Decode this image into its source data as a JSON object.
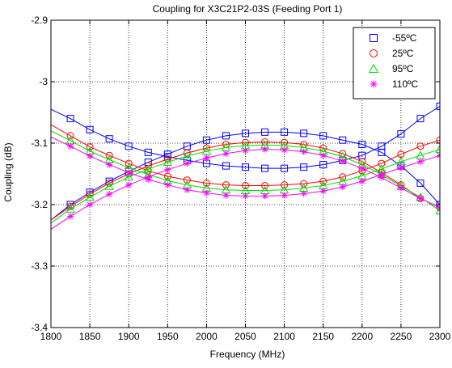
{
  "chart_data": {
    "type": "line",
    "title": "Coupling for X3C21P2-03S (Feeding Port 1)",
    "xlabel": "Frequency (MHz)",
    "ylabel": "Coupling (dB)",
    "xlim": [
      1800,
      2300
    ],
    "ylim": [
      -3.4,
      -2.9
    ],
    "xticks": [
      1800,
      1850,
      1900,
      1950,
      2000,
      2050,
      2100,
      2150,
      2200,
      2250,
      2300
    ],
    "yticks": [
      -3.4,
      -3.3,
      -3.2,
      -3.1,
      -3,
      -2.9
    ],
    "xtick_labels": [
      "1800",
      "1850",
      "1900",
      "1950",
      "2000",
      "2050",
      "2100",
      "2150",
      "2200",
      "2250",
      "2300"
    ],
    "ytick_labels": [
      "-3.4",
      "-3.3",
      "-3.2",
      "-3.1",
      "-3",
      "-2.9"
    ],
    "grid": true,
    "legend_position": "top-right",
    "x": [
      1800,
      1825,
      1850,
      1875,
      1900,
      1925,
      1950,
      1975,
      2000,
      2025,
      2050,
      2075,
      2100,
      2125,
      2150,
      2175,
      2200,
      2225,
      2250,
      2275,
      2300
    ],
    "marker_x": [
      1825,
      1850,
      1875,
      1900,
      1925,
      1950,
      1975,
      2000,
      2025,
      2050,
      2075,
      2100,
      2125,
      2150,
      2175,
      2200,
      2225,
      2250,
      2275,
      2300
    ],
    "series": [
      {
        "name": "-55ºC",
        "color": "#0000ff",
        "marker": "square",
        "curves": [
          [
            -3.045,
            -3.06,
            -3.078,
            -3.093,
            -3.105,
            -3.115,
            -3.122,
            -3.128,
            -3.133,
            -3.137,
            -3.139,
            -3.141,
            -3.141,
            -3.139,
            -3.135,
            -3.128,
            -3.12,
            -3.105,
            -3.085,
            -3.06,
            -3.04
          ],
          [
            -3.225,
            -3.2,
            -3.18,
            -3.162,
            -3.146,
            -3.131,
            -3.118,
            -3.105,
            -3.095,
            -3.088,
            -3.084,
            -3.082,
            -3.082,
            -3.084,
            -3.088,
            -3.095,
            -3.102,
            -3.115,
            -3.137,
            -3.165,
            -3.2
          ]
        ]
      },
      {
        "name": "25ºC",
        "color": "#ff0000",
        "marker": "circle",
        "curves": [
          [
            -3.07,
            -3.088,
            -3.106,
            -3.12,
            -3.133,
            -3.145,
            -3.154,
            -3.16,
            -3.165,
            -3.168,
            -3.169,
            -3.169,
            -3.168,
            -3.166,
            -3.162,
            -3.155,
            -3.145,
            -3.133,
            -3.118,
            -3.105,
            -3.095
          ],
          [
            -3.225,
            -3.203,
            -3.183,
            -3.165,
            -3.15,
            -3.137,
            -3.126,
            -3.116,
            -3.108,
            -3.102,
            -3.099,
            -3.098,
            -3.099,
            -3.102,
            -3.108,
            -3.117,
            -3.13,
            -3.148,
            -3.168,
            -3.19,
            -3.205
          ]
        ]
      },
      {
        "name": "95ºC",
        "color": "#00dd00",
        "marker": "triangle",
        "curves": [
          [
            -3.08,
            -3.096,
            -3.113,
            -3.127,
            -3.14,
            -3.151,
            -3.161,
            -3.168,
            -3.173,
            -3.176,
            -3.177,
            -3.177,
            -3.176,
            -3.173,
            -3.169,
            -3.162,
            -3.153,
            -3.142,
            -3.13,
            -3.12,
            -3.11
          ],
          [
            -3.23,
            -3.207,
            -3.188,
            -3.17,
            -3.155,
            -3.142,
            -3.131,
            -3.121,
            -3.113,
            -3.107,
            -3.104,
            -3.103,
            -3.104,
            -3.107,
            -3.113,
            -3.122,
            -3.135,
            -3.151,
            -3.17,
            -3.188,
            -3.21
          ]
        ]
      },
      {
        "name": "110ºC",
        "color": "#ff00ff",
        "marker": "asterisk",
        "curves": [
          [
            -3.09,
            -3.105,
            -3.121,
            -3.135,
            -3.148,
            -3.159,
            -3.168,
            -3.176,
            -3.181,
            -3.185,
            -3.186,
            -3.186,
            -3.185,
            -3.182,
            -3.178,
            -3.171,
            -3.162,
            -3.151,
            -3.14,
            -3.13,
            -3.12
          ],
          [
            -3.24,
            -3.219,
            -3.2,
            -3.183,
            -3.168,
            -3.155,
            -3.143,
            -3.133,
            -3.124,
            -3.117,
            -3.112,
            -3.11,
            -3.111,
            -3.114,
            -3.12,
            -3.129,
            -3.141,
            -3.156,
            -3.173,
            -3.19,
            -3.205
          ]
        ]
      }
    ]
  }
}
